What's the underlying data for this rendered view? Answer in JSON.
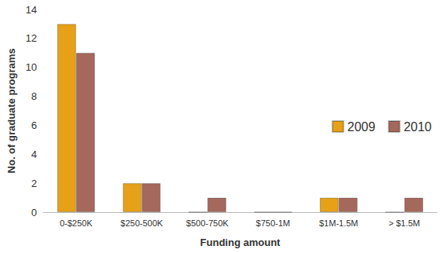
{
  "chart_data": {
    "type": "bar",
    "x_label": "Funding amount",
    "y_label": "No. of graduate programs",
    "categories": [
      "0-$250K",
      "$250-500K",
      "$500-750K",
      "$750-1M",
      "$1M-1.5M",
      "> $1.5M"
    ],
    "series": [
      {
        "name": "2009",
        "color": "#e6a118",
        "values": [
          13,
          2,
          0,
          0,
          1,
          0
        ]
      },
      {
        "name": "2010",
        "color": "#a5685c",
        "values": [
          11,
          2,
          1,
          0,
          1,
          1
        ]
      }
    ],
    "ylim": [
      0,
      14
    ],
    "yticks": [
      0,
      2,
      4,
      6,
      8,
      10,
      12,
      14
    ],
    "grid": false,
    "legend": "upper right"
  }
}
